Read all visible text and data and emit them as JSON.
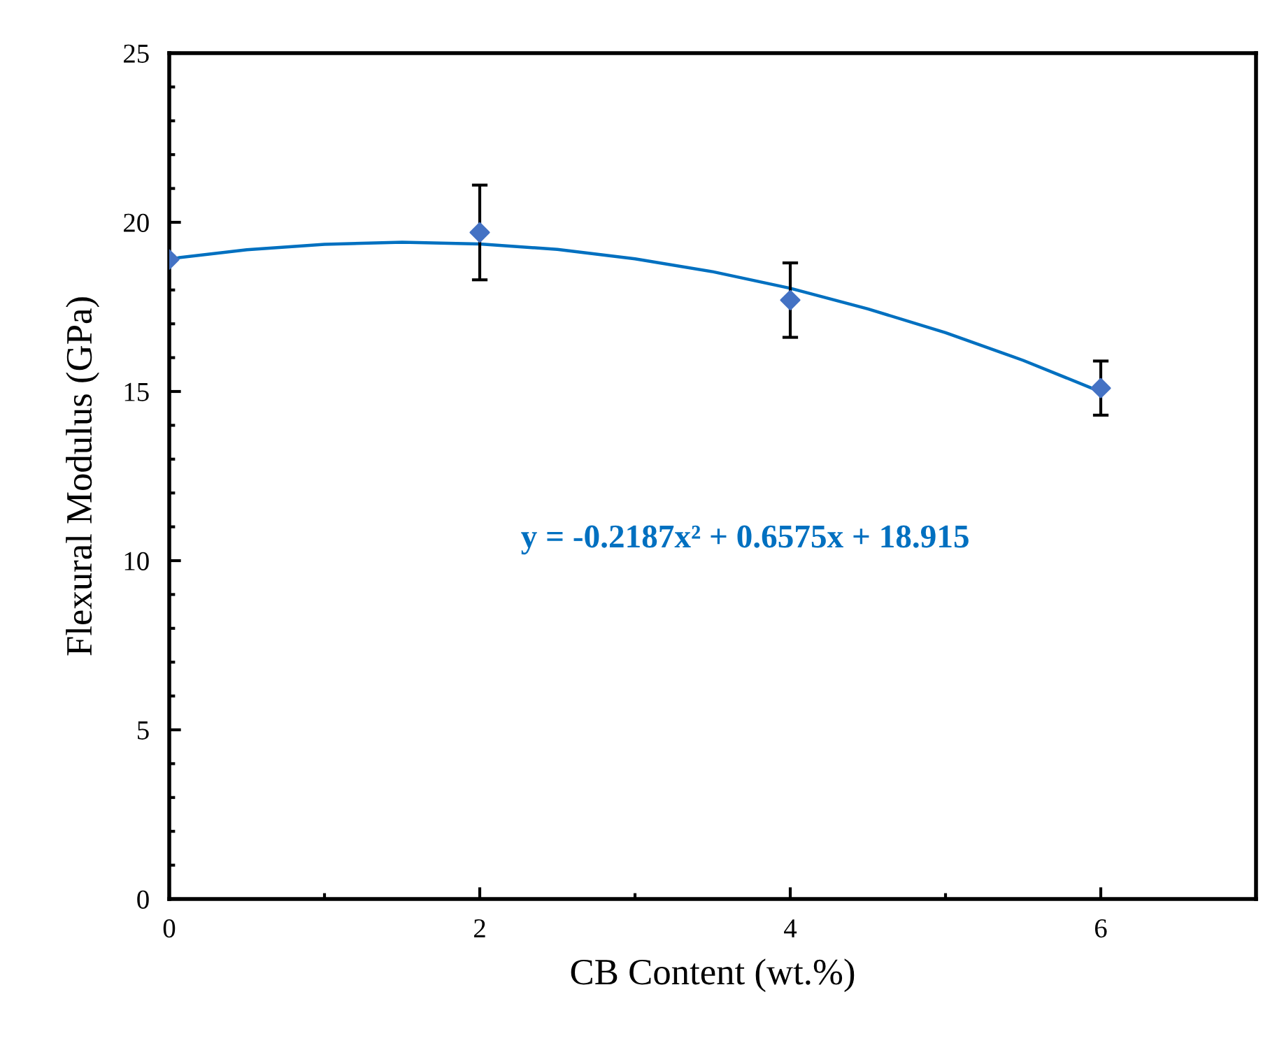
{
  "chart_data": {
    "type": "scatter",
    "xlabel": "CB Content (wt.%)",
    "ylabel": "Flexural Modulus (GPa)",
    "xlim": [
      0,
      7
    ],
    "xticks": [
      0,
      2,
      4,
      6
    ],
    "ylim": [
      0,
      25
    ],
    "yticks": [
      0,
      5,
      10,
      15,
      20,
      25
    ],
    "grid": false,
    "legend": false,
    "marker": "diamond",
    "annotations": [
      "y = -0.2187x² + 0.6575x + 18.915"
    ],
    "series": [
      {
        "color": "#4472c4",
        "x": [
          0,
          2,
          4,
          6
        ],
        "values": [
          18.9,
          19.7,
          17.7,
          15.1
        ],
        "errors": [
          null,
          1.4,
          1.1,
          0.8
        ]
      },
      {
        "type": "line",
        "color": "#0070c0",
        "marker": "none",
        "x": [
          0,
          0.5,
          1,
          1.5,
          2,
          2.5,
          3,
          3.5,
          4,
          4.5,
          5,
          5.5,
          6
        ],
        "values": [
          18.92,
          19.19,
          19.35,
          19.41,
          19.36,
          19.2,
          18.92,
          18.54,
          18.05,
          17.44,
          16.74,
          15.92,
          14.99
        ]
      }
    ]
  }
}
